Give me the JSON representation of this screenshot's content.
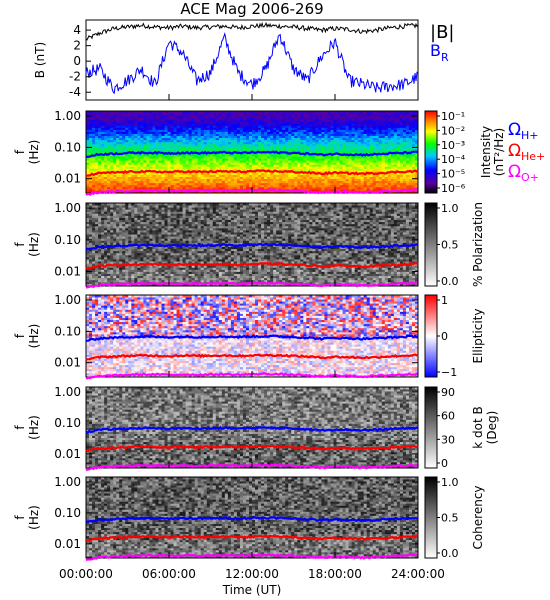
{
  "title": "ACE Mag 2006-269",
  "x_axis": {
    "label": "Time (UT)",
    "ticks": [
      "00:00:00",
      "06:00:00",
      "12:00:00",
      "18:00:00",
      "24:00:00"
    ],
    "range_hours": [
      0,
      24
    ]
  },
  "colors": {
    "B_total": "#000000",
    "B_R": "#0000ff",
    "H_plus": "#0000ff",
    "He_plus": "#ff0000",
    "O_plus": "#ff00ff"
  },
  "chart_data": [
    {
      "type": "line",
      "panel": "magnetic-field",
      "ylabel": "B (nT)",
      "y_ticks": [
        "4",
        "2",
        "0",
        "-2",
        "-4"
      ],
      "ylim": [
        -5,
        5.3
      ],
      "legend": [
        "|B|",
        "B_R"
      ],
      "series": [
        {
          "name": "|B|",
          "x": [
            0,
            1,
            2,
            3,
            4,
            5,
            6,
            7,
            8,
            9,
            10,
            11,
            12,
            13,
            14,
            15,
            16,
            17,
            18,
            19,
            20,
            21,
            22,
            23,
            24
          ],
          "values": [
            2.8,
            3.6,
            4.2,
            4.4,
            4.6,
            4.4,
            4.3,
            4.5,
            4.3,
            4.4,
            4.5,
            4.3,
            4.5,
            4.6,
            4.5,
            4.4,
            4.2,
            4.0,
            4.2,
            4.1,
            3.8,
            4.0,
            4.3,
            4.5,
            4.6
          ]
        },
        {
          "name": "B_R",
          "x": [
            0,
            1,
            2,
            3,
            4,
            5,
            6,
            7,
            8,
            9,
            10,
            11,
            12,
            13,
            14,
            15,
            16,
            17,
            18,
            19,
            20,
            21,
            22,
            23,
            24
          ],
          "values": [
            -1.5,
            -1.0,
            -3.5,
            -2.5,
            -1.0,
            -3.0,
            2.5,
            1.0,
            -2.5,
            -1.5,
            3.0,
            -1.5,
            -3.0,
            -1.0,
            3.5,
            -1.0,
            -2.5,
            0.5,
            2.5,
            -2.5,
            -3.0,
            -3.5,
            -3.2,
            -3.0,
            -2.0
          ]
        }
      ]
    },
    {
      "type": "heatmap",
      "panel": "intensity",
      "ylabel": "f (Hz)",
      "y_ticks": [
        "1.00",
        "0.10",
        "0.01"
      ],
      "yscale": "log",
      "ylim_hz": [
        0.004,
        1.4
      ],
      "colorbar": {
        "label": "Intensity (nT²/Hz)",
        "ticks": [
          "10⁻¹",
          "10⁻²",
          "10⁻³",
          "10⁻⁴",
          "10⁻⁵",
          "10⁻⁶"
        ],
        "scheme": "rainbow"
      }
    },
    {
      "type": "heatmap",
      "panel": "polarization",
      "ylabel": "f (Hz)",
      "y_ticks": [
        "1.00",
        "0.10",
        "0.01"
      ],
      "colorbar": {
        "label": "% Polarization",
        "ticks": [
          "1.0",
          "0.5",
          "0.0"
        ],
        "scheme": "grayscale"
      }
    },
    {
      "type": "heatmap",
      "panel": "ellipticity",
      "ylabel": "f (Hz)",
      "y_ticks": [
        "1.00",
        "0.10",
        "0.01"
      ],
      "colorbar": {
        "label": "Ellipticity",
        "ticks": [
          "1",
          "0",
          "−1"
        ],
        "scheme": "blue-white-red"
      }
    },
    {
      "type": "heatmap",
      "panel": "k-dot-b",
      "ylabel": "f (Hz)",
      "y_ticks": [
        "1.00",
        "0.10",
        "0.01"
      ],
      "colorbar": {
        "label": "k dot B (Deg)",
        "ticks": [
          "90",
          "60",
          "30",
          "0"
        ],
        "scheme": "grayscale"
      }
    },
    {
      "type": "heatmap",
      "panel": "coherency",
      "ylabel": "f (Hz)",
      "y_ticks": [
        "1.00",
        "0.10",
        "0.01"
      ],
      "colorbar": {
        "label": "Coherency",
        "ticks": [
          "1.0",
          "0.5",
          "0.0"
        ],
        "scheme": "grayscale"
      }
    }
  ],
  "gyrofrequency_lines": {
    "legend": [
      "ΩH+",
      "ΩHe+",
      "ΩO+"
    ],
    "x": [
      0,
      1,
      2,
      3,
      4,
      5,
      6,
      7,
      8,
      9,
      10,
      11,
      12,
      13,
      14,
      15,
      16,
      17,
      18,
      19,
      20,
      21,
      22,
      23,
      24
    ],
    "H_plus_hz": [
      0.05,
      0.06,
      0.063,
      0.066,
      0.068,
      0.067,
      0.065,
      0.068,
      0.066,
      0.067,
      0.069,
      0.066,
      0.069,
      0.07,
      0.069,
      0.066,
      0.063,
      0.058,
      0.062,
      0.06,
      0.058,
      0.06,
      0.064,
      0.067,
      0.07
    ],
    "He_plus_hz": [
      0.0125,
      0.015,
      0.0158,
      0.0165,
      0.017,
      0.0168,
      0.0163,
      0.017,
      0.0165,
      0.0168,
      0.0172,
      0.0165,
      0.0172,
      0.0175,
      0.0172,
      0.0165,
      0.0158,
      0.0145,
      0.0155,
      0.015,
      0.0145,
      0.015,
      0.016,
      0.0168,
      0.0175
    ],
    "O_plus_hz": [
      0.0031,
      0.0037,
      0.0039,
      0.0041,
      0.0042,
      0.0042,
      0.0041,
      0.0042,
      0.0041,
      0.0042,
      0.0043,
      0.0041,
      0.0043,
      0.0044,
      0.0043,
      0.0041,
      0.0039,
      0.0036,
      0.0039,
      0.0038,
      0.0036,
      0.0038,
      0.004,
      0.0042,
      0.0044
    ]
  }
}
